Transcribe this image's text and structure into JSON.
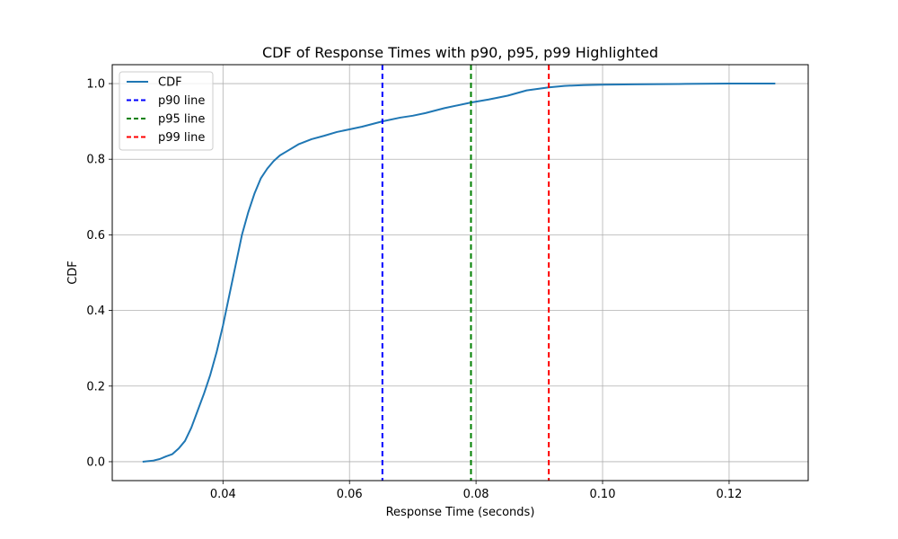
{
  "chart_data": {
    "type": "line",
    "title": "CDF of Response Times with p90, p95, p99 Highlighted",
    "xlabel": "Response Time (seconds)",
    "ylabel": "CDF",
    "xlim": [
      0.0225,
      0.1325
    ],
    "ylim": [
      -0.05,
      1.05
    ],
    "xticks": [
      "0.04",
      "0.06",
      "0.08",
      "0.10",
      "0.12"
    ],
    "xtick_values": [
      0.04,
      0.06,
      0.08,
      0.1,
      0.12
    ],
    "yticks": [
      "0.0",
      "0.2",
      "0.4",
      "0.6",
      "0.8",
      "1.0"
    ],
    "ytick_values": [
      0.0,
      0.2,
      0.4,
      0.6,
      0.8,
      1.0
    ],
    "grid": true,
    "legend_position": "top-left",
    "series": [
      {
        "name": "CDF",
        "color": "#1f77b4",
        "style": "solid",
        "points": [
          [
            0.0273,
            0.0
          ],
          [
            0.029,
            0.003
          ],
          [
            0.03,
            0.007
          ],
          [
            0.031,
            0.014
          ],
          [
            0.032,
            0.02
          ],
          [
            0.033,
            0.035
          ],
          [
            0.034,
            0.055
          ],
          [
            0.035,
            0.09
          ],
          [
            0.036,
            0.135
          ],
          [
            0.037,
            0.18
          ],
          [
            0.038,
            0.23
          ],
          [
            0.039,
            0.29
          ],
          [
            0.04,
            0.36
          ],
          [
            0.041,
            0.44
          ],
          [
            0.042,
            0.52
          ],
          [
            0.043,
            0.6
          ],
          [
            0.044,
            0.66
          ],
          [
            0.045,
            0.71
          ],
          [
            0.046,
            0.75
          ],
          [
            0.047,
            0.775
          ],
          [
            0.048,
            0.795
          ],
          [
            0.049,
            0.81
          ],
          [
            0.05,
            0.82
          ],
          [
            0.052,
            0.84
          ],
          [
            0.054,
            0.853
          ],
          [
            0.056,
            0.862
          ],
          [
            0.058,
            0.872
          ],
          [
            0.06,
            0.879
          ],
          [
            0.062,
            0.886
          ],
          [
            0.0652,
            0.9
          ],
          [
            0.068,
            0.91
          ],
          [
            0.07,
            0.915
          ],
          [
            0.072,
            0.922
          ],
          [
            0.075,
            0.935
          ],
          [
            0.0792,
            0.95
          ],
          [
            0.082,
            0.958
          ],
          [
            0.085,
            0.968
          ],
          [
            0.088,
            0.982
          ],
          [
            0.0915,
            0.99
          ],
          [
            0.094,
            0.994
          ],
          [
            0.097,
            0.996
          ],
          [
            0.1,
            0.997
          ],
          [
            0.105,
            0.998
          ],
          [
            0.112,
            0.999
          ],
          [
            0.12,
            1.0
          ],
          [
            0.1273,
            1.0
          ]
        ]
      },
      {
        "name": "p90 line",
        "color": "#0000ff",
        "style": "dashed",
        "x": 0.0652
      },
      {
        "name": "p95 line",
        "color": "#008000",
        "style": "dashed",
        "x": 0.0792
      },
      {
        "name": "p99 line",
        "color": "#ff0000",
        "style": "dashed",
        "x": 0.0915
      }
    ]
  }
}
